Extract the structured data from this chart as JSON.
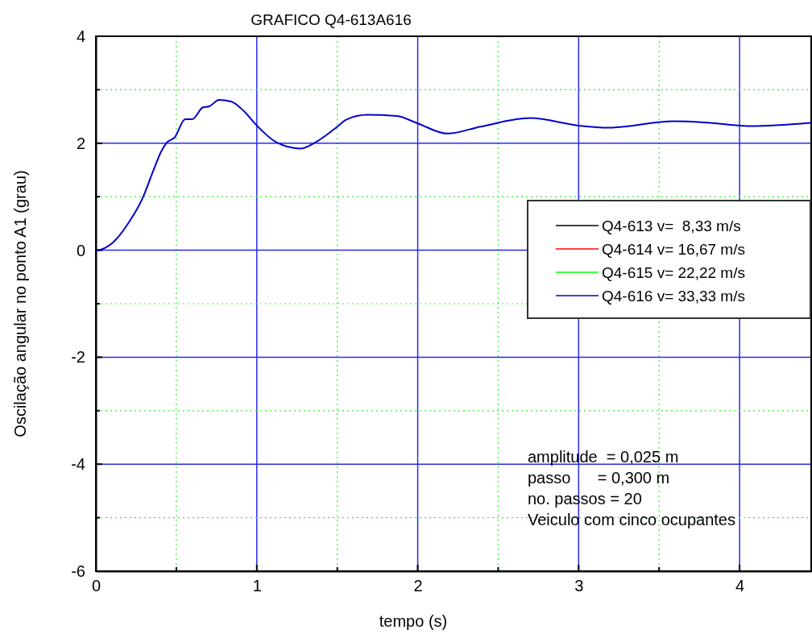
{
  "chart_data": {
    "type": "line",
    "title": "GRAFICO Q4-613A616",
    "xlabel": "tempo (s)",
    "ylabel": "Oscilação angular no ponto A1 (grau)",
    "x": [
      0,
      0.005,
      0.105,
      0.205,
      0.29,
      0.355,
      0.405,
      0.44,
      0.49,
      0.555,
      0.6,
      0.665,
      0.705,
      0.765,
      0.84,
      0.92,
      1.0,
      1.12,
      1.27,
      1.355,
      1.505,
      1.555,
      1.685,
      1.87,
      2.0,
      2.185,
      2.39,
      2.7,
      3.0,
      3.185,
      3.59,
      3.78,
      4.01,
      4.07,
      4.44
    ],
    "series": [
      {
        "name": "Q4-613 v=  8,33 m/s",
        "color": "#000000",
        "values": [
          null,
          null,
          null,
          null,
          null,
          null,
          null,
          null,
          null,
          null,
          null,
          null,
          null,
          null,
          null,
          null,
          null,
          null,
          null,
          null,
          null,
          null,
          null,
          null,
          null,
          null,
          null,
          null,
          null,
          null,
          null,
          null,
          null,
          null,
          null
        ]
      },
      {
        "name": "Q4-614 v= 16,67 m/s",
        "color": "#ff0000",
        "values": [
          null,
          null,
          null,
          null,
          null,
          null,
          null,
          null,
          null,
          null,
          null,
          null,
          null,
          null,
          null,
          null,
          null,
          null,
          null,
          null,
          null,
          null,
          null,
          null,
          null,
          null,
          null,
          null,
          null,
          null,
          null,
          null,
          null,
          null,
          null
        ]
      },
      {
        "name": "Q4-615 v= 22,22 m/s",
        "color": "#00ff00",
        "values": [
          null,
          null,
          null,
          null,
          null,
          null,
          null,
          null,
          null,
          null,
          null,
          null,
          null,
          null,
          null,
          null,
          null,
          null,
          null,
          null,
          null,
          null,
          null,
          null,
          null,
          null,
          null,
          null,
          null,
          null,
          null,
          null,
          null,
          null,
          null
        ]
      },
      {
        "name": "Q4-616 v= 33,33 m/s",
        "color": "#0000cc",
        "values": [
          0,
          0,
          0.14,
          0.52,
          0.97,
          1.47,
          1.84,
          2.01,
          2.11,
          2.45,
          2.45,
          2.67,
          2.69,
          2.81,
          2.78,
          2.6,
          2.33,
          2.02,
          1.9,
          2.0,
          2.32,
          2.44,
          2.53,
          2.51,
          2.37,
          2.18,
          2.31,
          2.47,
          2.33,
          2.29,
          2.41,
          2.39,
          2.33,
          2.32,
          2.38
        ]
      }
    ],
    "xlim": [
      0,
      4.445
    ],
    "xticks": [
      0,
      {
        "value": 0.5,
        "label": null
      },
      1,
      {
        "value": 1.5,
        "label": null
      },
      2,
      {
        "value": 2.5,
        "label": null
      },
      3,
      {
        "value": 3.5,
        "label": null
      },
      4
    ],
    "ylim": [
      -6,
      4
    ],
    "yticks": [
      -6,
      {
        "value": -5,
        "label": null
      },
      -4,
      {
        "value": -3,
        "label": null
      },
      -2,
      {
        "value": -1,
        "label": null
      },
      0,
      {
        "value": 1,
        "label": null
      },
      2,
      {
        "value": 3,
        "label": null
      },
      4
    ],
    "grid": true,
    "legend": "right",
    "line_style": "solid",
    "annotations": [
      "amplitude  = 0,025 m",
      "passo      = 0,300 m",
      "no. passos = 20",
      "Veiculo com cinco ocupantes"
    ]
  }
}
